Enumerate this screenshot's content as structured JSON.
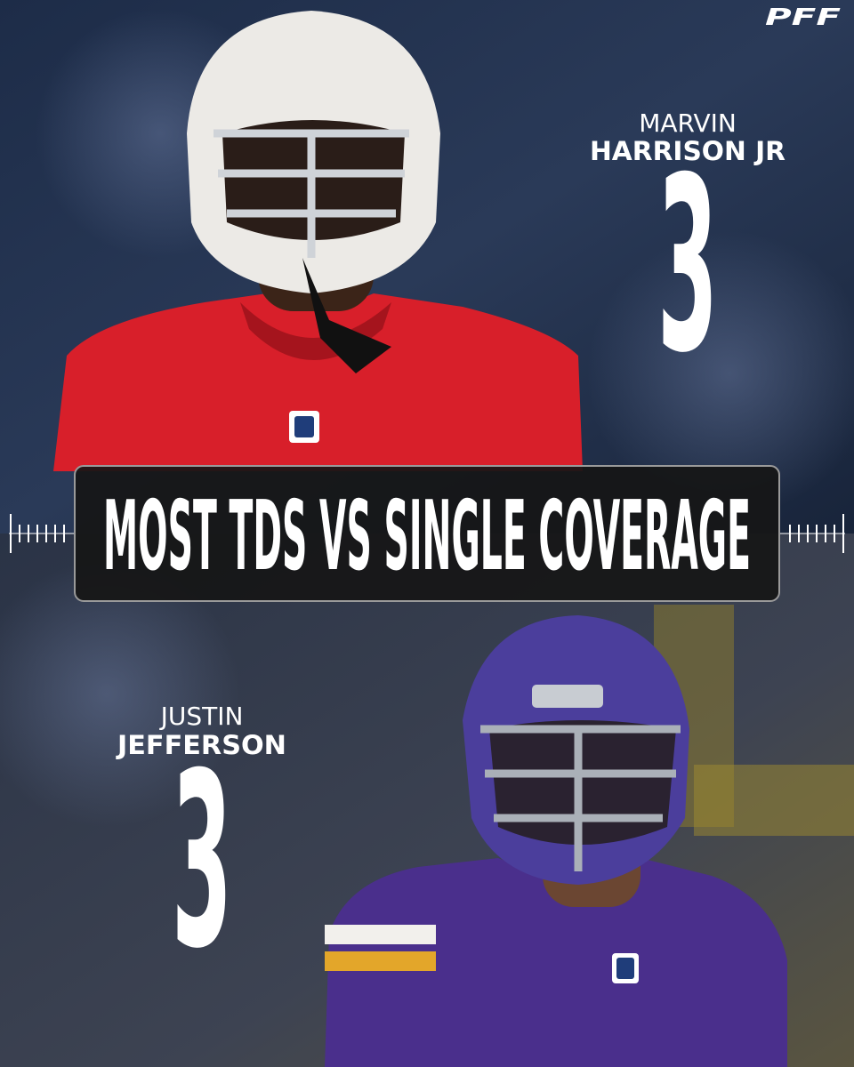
{
  "brand": "PFF",
  "title": "MOST TDS VS SINGLE COVERAGE",
  "players": [
    {
      "first_name": "MARVIN",
      "last_name": "HARRISON JR",
      "value": 3
    },
    {
      "first_name": "JUSTIN",
      "last_name": "JEFFERSON",
      "value": 3
    }
  ]
}
